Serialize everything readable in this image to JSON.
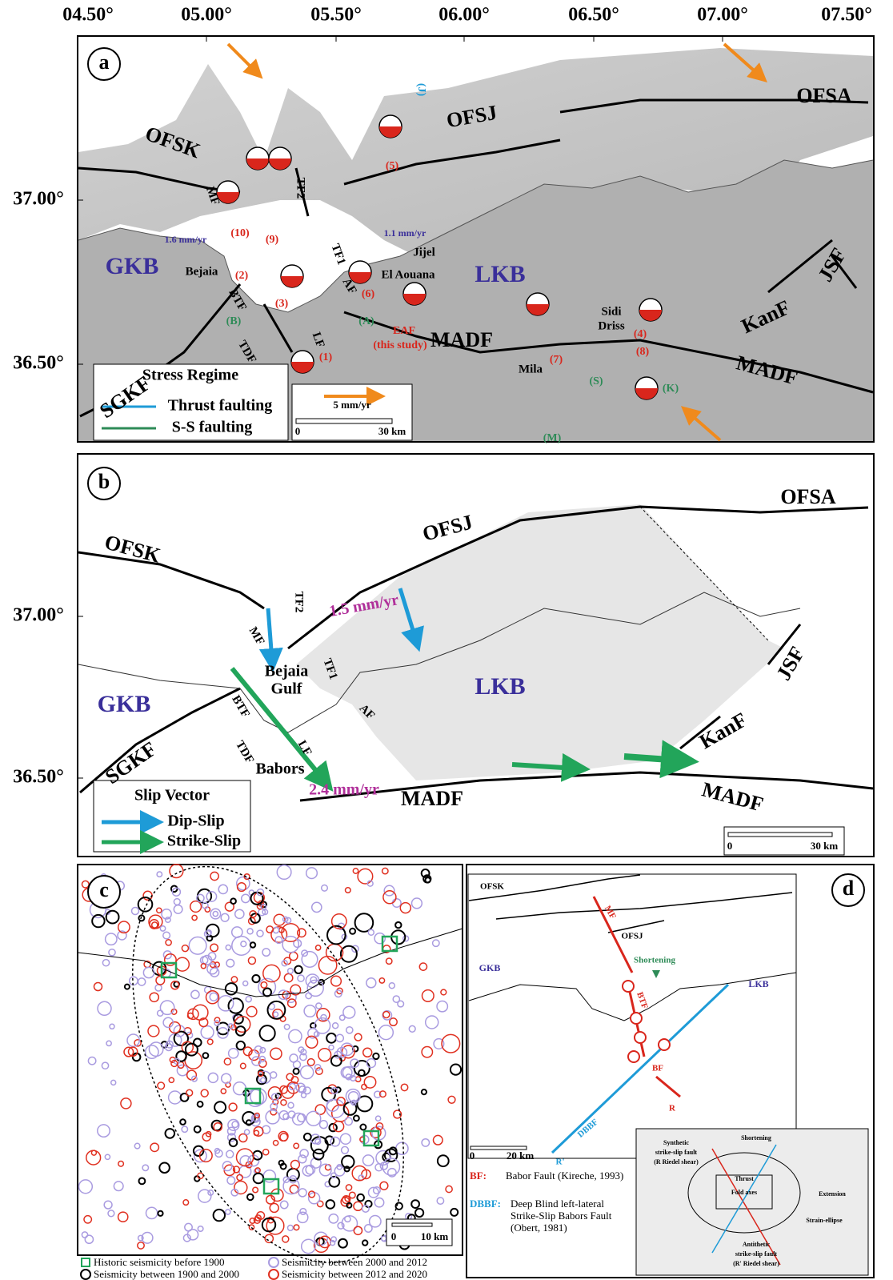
{
  "axes": {
    "longitude": [
      "04.50°",
      "05.00°",
      "05.50°",
      "06.00°",
      "06.50°",
      "07.00°",
      "07.50°"
    ],
    "latitude_a": [
      "37.00°",
      "36.50°"
    ],
    "latitude_b": [
      "37.00°",
      "36.50°"
    ]
  },
  "panel_a": {
    "label": "a",
    "faults": [
      "OFSK",
      "OFSJ",
      "OFSA",
      "MF",
      "TF2",
      "TF1",
      "AF",
      "BTF",
      "TDF",
      "LF",
      "SGKF",
      "MADF",
      "MADF",
      "KanF",
      "JSF"
    ],
    "study_fault": [
      "EAF",
      "(this study)"
    ],
    "domains": [
      "GKB",
      "LKB"
    ],
    "places": [
      "Bejaia",
      "Jijel",
      "El Aouana",
      "Mila",
      "Sidi",
      "Driss"
    ],
    "rates": [
      "1.6 mm/yr",
      "1.1 mm/yr"
    ],
    "events": [
      "(1)",
      "(2)",
      "(3)",
      "(4)",
      "(5)",
      "(6)",
      "(7)",
      "(8)",
      "(9)",
      "(10)"
    ],
    "stress_sites": [
      "(J)",
      "(B)",
      "(A)",
      "(S)",
      "(M)",
      "(K)"
    ],
    "legend": {
      "title": "Stress Regime",
      "items": [
        "Thrust faulting",
        "S-S faulting"
      ]
    },
    "scale": {
      "velocity": "5 mm/yr",
      "start": "0",
      "end": "30 km"
    }
  },
  "panel_b": {
    "label": "b",
    "faults": [
      "OFSK",
      "OFSJ",
      "OFSA",
      "TF2",
      "MF",
      "TF1",
      "BTF",
      "AF",
      "LF",
      "TDF",
      "SGKF",
      "JSF",
      "KanF",
      "MADF",
      "MADF"
    ],
    "domains": [
      "GKB",
      "LKB"
    ],
    "places": [
      "Bejaia",
      "Gulf",
      "Babors"
    ],
    "rates": [
      "1.5 mm/yr",
      "2.4 mm/yr"
    ],
    "legend": {
      "title": "Slip Vector",
      "items": [
        "Dip-Slip",
        "Strike-Slip"
      ]
    },
    "scale": {
      "start": "0",
      "end": "30 km"
    }
  },
  "panel_c": {
    "label": "c",
    "scale": {
      "start": "0",
      "end": "10 km"
    },
    "legend": [
      "Historic seismicity before 1900",
      "Seismicity between 1900 and 2000",
      "Seismicity between 2000 and 2012",
      "Seismicity between 2012 and 2020"
    ]
  },
  "panel_d": {
    "label": "d",
    "faults": [
      "OFSK",
      "OFSJ",
      "MF",
      "BTF",
      "BF",
      "R",
      "R'",
      "DBBF"
    ],
    "domains": [
      "GKB",
      "LKB"
    ],
    "shortening": "Shortening",
    "scale": {
      "start": "0",
      "end": "20 km"
    },
    "inset": {
      "synthetic": [
        "Synthetic",
        "strike-slip fault",
        "(R Riedel shear)"
      ],
      "shortening": "Shortening",
      "thrust": "Thrust",
      "fold_axes": "Fold axes",
      "extension": "Extension",
      "strain_ellipse": "Strain-ellipse",
      "antithetic": [
        "Antithetic",
        "strike-slip fault",
        "(R' Riedel shear)"
      ]
    },
    "notes": [
      {
        "abbr": "BF:",
        "text": [
          "Babor Fault (Kireche, 1993)"
        ]
      },
      {
        "abbr": "DBBF:",
        "text": [
          "Deep Blind left-lateral",
          "Strike-Slip Babors Fault",
          "(Obert, 1981)"
        ]
      }
    ]
  }
}
